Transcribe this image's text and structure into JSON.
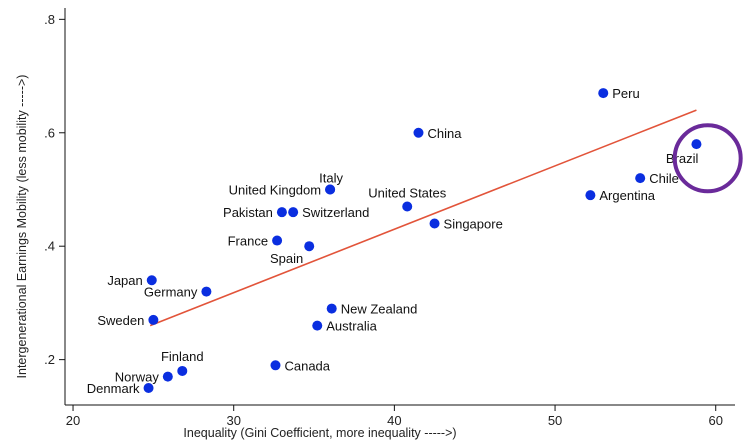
{
  "chart_data": {
    "type": "scatter",
    "xlabel": "Inequality (Gini Coefficient, more inequality ----->)",
    "ylabel": "Intergenerational Earnings Mobility (less mobility ----->)",
    "xlim": [
      19.5,
      61.2
    ],
    "ylim": [
      0.12,
      0.82
    ],
    "xticks": [
      20,
      30,
      40,
      50,
      60
    ],
    "xtick_labels": [
      "20",
      "30",
      "40",
      "50",
      "60"
    ],
    "yticks": [
      0.2,
      0.4,
      0.6,
      0.8
    ],
    "ytick_labels": [
      ".2",
      ".4",
      ".6",
      ".8"
    ],
    "grid": false,
    "legend": "none",
    "point_color": "#0a2ee0",
    "fit_line_color": "#e2543a",
    "highlight_color": "#6a2a9a",
    "fit_line": {
      "x": [
        24.8,
        58.8
      ],
      "y": [
        0.26,
        0.64
      ]
    },
    "highlight": {
      "x": 59.5,
      "y": 0.555,
      "target": "Brazil"
    },
    "points": [
      {
        "label": "Denmark",
        "x": 24.7,
        "y": 0.15,
        "label_pos": "left"
      },
      {
        "label": "Norway",
        "x": 25.9,
        "y": 0.17,
        "label_pos": "left"
      },
      {
        "label": "Finland",
        "x": 26.8,
        "y": 0.18,
        "label_pos": "above"
      },
      {
        "label": "Sweden",
        "x": 25.0,
        "y": 0.27,
        "label_pos": "left"
      },
      {
        "label": "Germany",
        "x": 28.3,
        "y": 0.32,
        "label_pos": "left"
      },
      {
        "label": "Japan",
        "x": 24.9,
        "y": 0.34,
        "label_pos": "left"
      },
      {
        "label": "Canada",
        "x": 32.6,
        "y": 0.19,
        "label_pos": "right"
      },
      {
        "label": "France",
        "x": 32.7,
        "y": 0.41,
        "label_pos": "left"
      },
      {
        "label": "Spain",
        "x": 34.7,
        "y": 0.4,
        "label_pos": "below-left"
      },
      {
        "label": "Pakistan",
        "x": 33.0,
        "y": 0.46,
        "label_pos": "left"
      },
      {
        "label": "Switzerland",
        "x": 33.7,
        "y": 0.46,
        "label_pos": "right"
      },
      {
        "label": "United Kingdom",
        "x": 36.0,
        "y": 0.5,
        "label_pos": "left"
      },
      {
        "label": "Italy",
        "x": 36.0,
        "y": 0.5,
        "label_pos": "above"
      },
      {
        "label": "Australia",
        "x": 35.2,
        "y": 0.26,
        "label_pos": "right"
      },
      {
        "label": "New Zealand",
        "x": 36.1,
        "y": 0.29,
        "label_pos": "right"
      },
      {
        "label": "United States",
        "x": 40.8,
        "y": 0.47,
        "label_pos": "above-left"
      },
      {
        "label": "China",
        "x": 41.5,
        "y": 0.6,
        "label_pos": "right"
      },
      {
        "label": "Singapore",
        "x": 42.5,
        "y": 0.44,
        "label_pos": "right"
      },
      {
        "label": "Argentina",
        "x": 52.2,
        "y": 0.49,
        "label_pos": "right"
      },
      {
        "label": "Peru",
        "x": 53.0,
        "y": 0.67,
        "label_pos": "right"
      },
      {
        "label": "Chile",
        "x": 55.3,
        "y": 0.52,
        "label_pos": "right"
      },
      {
        "label": "Brazil",
        "x": 58.8,
        "y": 0.58,
        "label_pos": "below-left"
      }
    ]
  }
}
